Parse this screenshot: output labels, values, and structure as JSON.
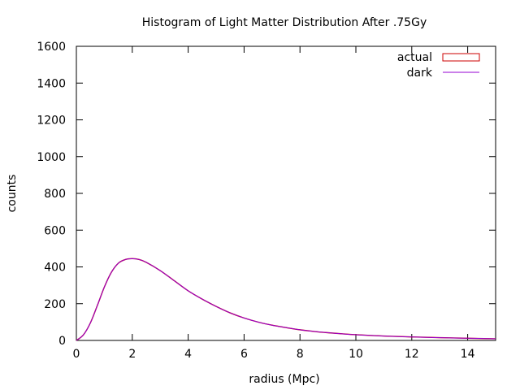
{
  "chart_data": {
    "type": "line",
    "title": "Histogram of Light Matter Distribution After .75Gy",
    "xlabel": "radius (Mpc)",
    "ylabel": "counts",
    "xlim": [
      0,
      15
    ],
    "ylim": [
      0,
      1600
    ],
    "x_ticks": [
      0,
      2,
      4,
      6,
      8,
      10,
      12,
      14
    ],
    "y_ticks": [
      0,
      200,
      400,
      600,
      800,
      1000,
      1200,
      1400,
      1600
    ],
    "grid": false,
    "legend_position": "top-right",
    "series": [
      {
        "name": "actual",
        "style": "boxes",
        "color": "#cc0000",
        "x": [
          0,
          0.25,
          0.5,
          0.75,
          1,
          1.25,
          1.5,
          1.75,
          2,
          2.25,
          2.5,
          3,
          3.5,
          4,
          4.5,
          5,
          5.5,
          6,
          6.5,
          7,
          7.5,
          8,
          8.5,
          9,
          9.5,
          10,
          11,
          12,
          13,
          14,
          15
        ],
        "values": [
          0,
          30,
          95,
          190,
          290,
          370,
          420,
          440,
          445,
          440,
          425,
          380,
          325,
          270,
          225,
          185,
          150,
          122,
          100,
          83,
          70,
          58,
          49,
          42,
          36,
          31,
          24,
          19,
          15,
          12,
          9
        ]
      },
      {
        "name": "dark",
        "style": "line",
        "color": "#9400d3",
        "x": [
          0,
          0.25,
          0.5,
          0.75,
          1,
          1.25,
          1.5,
          1.75,
          2,
          2.25,
          2.5,
          3,
          3.5,
          4,
          4.5,
          5,
          5.5,
          6,
          6.5,
          7,
          7.5,
          8,
          8.5,
          9,
          9.5,
          10,
          11,
          12,
          13,
          14,
          15
        ],
        "values": [
          0,
          30,
          95,
          190,
          290,
          370,
          420,
          440,
          445,
          440,
          425,
          380,
          325,
          270,
          225,
          185,
          150,
          122,
          100,
          83,
          70,
          58,
          49,
          42,
          36,
          31,
          24,
          19,
          15,
          12,
          9
        ]
      }
    ]
  }
}
